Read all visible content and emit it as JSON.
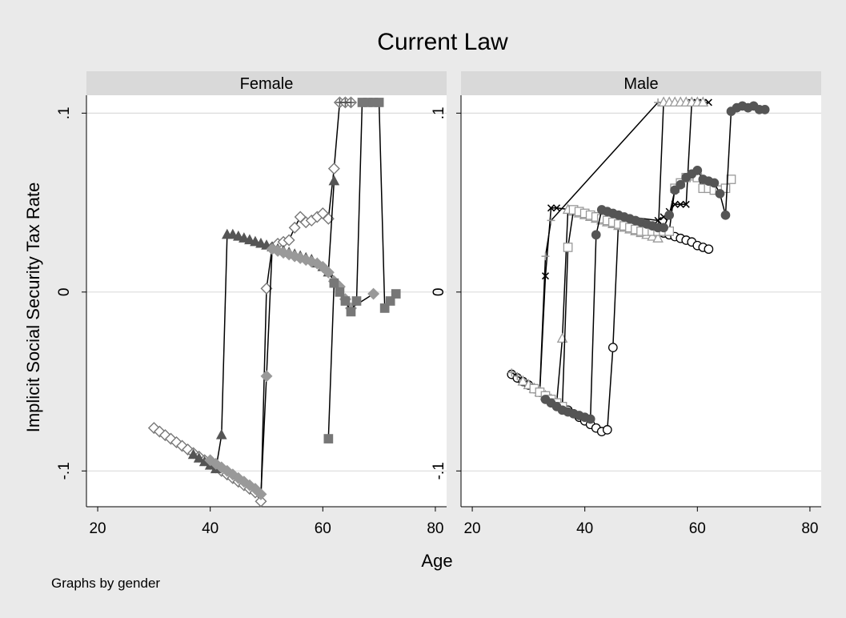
{
  "title": "Current Law",
  "xlabel": "Age",
  "ylabel": "Implicit Social Security Tax Rate",
  "note": "Graphs by gender",
  "colors": {
    "outer_bg": "#eaeaea",
    "panel_bg": "#ffffff",
    "strip_bg": "#d9d9d9",
    "grid": "#dcdcdc",
    "line": "#000000"
  },
  "chart_data": [
    {
      "type": "line",
      "panel": "Female",
      "xlim": [
        18,
        82
      ],
      "ylim": [
        -0.12,
        0.11
      ],
      "xticks": [
        20,
        40,
        60,
        80
      ],
      "xtick_labels": [
        "20",
        "40",
        "60",
        "80"
      ],
      "yticks": [
        -0.1,
        0,
        0.1
      ],
      "ytick_labels": [
        "-.1",
        "0",
        ".1"
      ],
      "grid": true,
      "series": [
        {
          "marker": "diamond-hollow",
          "color": "#777777",
          "x": [
            30,
            31,
            32,
            33,
            34,
            35,
            36,
            37,
            38,
            39,
            40,
            41,
            42,
            43,
            44,
            45,
            46,
            47,
            48,
            49,
            50,
            51,
            52,
            53,
            54,
            55,
            56,
            57,
            58,
            59,
            60,
            61,
            62,
            63,
            64,
            65
          ],
          "y": [
            -0.076,
            -0.078,
            -0.08,
            -0.082,
            -0.084,
            -0.086,
            -0.088,
            -0.09,
            -0.092,
            -0.094,
            -0.096,
            -0.098,
            -0.1,
            -0.102,
            -0.104,
            -0.106,
            -0.108,
            -0.11,
            -0.112,
            -0.117,
            0.002,
            0.025,
            0.027,
            0.028,
            0.029,
            0.036,
            0.042,
            0.039,
            0.04,
            0.042,
            0.044,
            0.041,
            0.069,
            0.106,
            0.106,
            0.106
          ]
        },
        {
          "marker": "triangle-filled",
          "color": "#555555",
          "x": [
            37,
            38,
            39,
            40,
            41,
            42,
            43,
            44,
            45,
            46,
            47,
            48,
            49,
            50,
            51,
            52,
            53,
            54,
            55,
            56,
            57,
            58,
            59,
            60,
            61,
            62
          ],
          "y": [
            -0.091,
            -0.093,
            -0.095,
            -0.097,
            -0.099,
            -0.08,
            0.032,
            0.032,
            0.031,
            0.03,
            0.029,
            0.028,
            0.027,
            0.026,
            0.025,
            0.024,
            0.023,
            0.022,
            0.021,
            0.02,
            0.019,
            0.018,
            0.016,
            0.014,
            0.011,
            0.062
          ]
        },
        {
          "marker": "diamond-filled",
          "color": "#999999",
          "x": [
            40,
            41,
            42,
            43,
            44,
            45,
            46,
            47,
            48,
            49,
            50,
            51,
            52,
            53,
            54,
            55,
            56,
            57,
            58,
            59,
            60,
            61,
            62,
            63,
            64,
            65,
            69
          ],
          "y": [
            -0.094,
            -0.096,
            -0.098,
            -0.1,
            -0.102,
            -0.104,
            -0.106,
            -0.108,
            -0.11,
            -0.113,
            -0.047,
            0.024,
            0.023,
            0.022,
            0.021,
            0.02,
            0.019,
            0.018,
            0.017,
            0.016,
            0.014,
            0.011,
            0.006,
            0.003,
            -0.004,
            -0.009,
            -0.001
          ]
        },
        {
          "marker": "square-filled",
          "color": "#777777",
          "x": [
            61,
            62,
            63,
            64,
            65,
            66,
            67,
            68,
            69,
            70,
            71,
            72,
            73
          ],
          "y": [
            -0.082,
            0.005,
            0.0,
            -0.005,
            -0.011,
            -0.005,
            0.106,
            0.106,
            0.106,
            0.106,
            -0.009,
            -0.005,
            -0.001
          ]
        },
        {
          "marker": "plus",
          "color": "#555555",
          "x": [
            63,
            64,
            65
          ],
          "y": [
            0.106,
            0.106,
            0.106
          ]
        }
      ]
    },
    {
      "type": "line",
      "panel": "Male",
      "xlim": [
        18,
        82
      ],
      "ylim": [
        -0.12,
        0.11
      ],
      "xticks": [
        20,
        40,
        60,
        80
      ],
      "xtick_labels": [
        "20",
        "40",
        "60",
        "80"
      ],
      "yticks": [
        -0.1,
        0,
        0.1
      ],
      "ytick_labels": [
        "-.1",
        "0",
        ".1"
      ],
      "grid": true,
      "series": [
        {
          "marker": "circle-hollow",
          "color": "#000000",
          "x": [
            27,
            28,
            29,
            30,
            31,
            32,
            33,
            34,
            35,
            36,
            37,
            38,
            39,
            40,
            41,
            42,
            43,
            44,
            45,
            46,
            47,
            48,
            49,
            50,
            51,
            52,
            53,
            54,
            55,
            56,
            57,
            58,
            59,
            60,
            61,
            62
          ],
          "y": [
            -0.046,
            -0.048,
            -0.05,
            -0.052,
            -0.054,
            -0.056,
            -0.058,
            -0.06,
            -0.062,
            -0.064,
            -0.066,
            -0.068,
            -0.07,
            -0.072,
            -0.074,
            -0.076,
            -0.078,
            -0.077,
            -0.031,
            0.041,
            0.04,
            0.039,
            0.038,
            0.037,
            0.036,
            0.035,
            0.034,
            0.033,
            0.032,
            0.031,
            0.03,
            0.029,
            0.028,
            0.026,
            0.025,
            0.024
          ]
        },
        {
          "marker": "x",
          "color": "#000000",
          "x": [
            32,
            33,
            34,
            35,
            53,
            54,
            55,
            56,
            57,
            58,
            59,
            60,
            61,
            62
          ],
          "y": [
            -0.056,
            0.009,
            0.047,
            0.047,
            0.04,
            0.042,
            0.045,
            0.049,
            0.049,
            0.049,
            0.106,
            0.106,
            0.106,
            0.106
          ]
        },
        {
          "marker": "plus",
          "color": "#999999",
          "x": [
            27,
            28,
            29,
            30,
            31,
            32,
            33,
            34,
            53,
            54,
            55
          ],
          "y": [
            -0.045,
            -0.047,
            -0.049,
            -0.051,
            -0.053,
            -0.055,
            0.02,
            0.04,
            0.106,
            0.106,
            0.106
          ]
        },
        {
          "marker": "triangle-hollow",
          "color": "#999999",
          "x": [
            29,
            30,
            31,
            32,
            33,
            34,
            35,
            36,
            37,
            38,
            39,
            40,
            41,
            42,
            43,
            44,
            45,
            46,
            47,
            48,
            49,
            50,
            51,
            52,
            53,
            54,
            55,
            56,
            57,
            58,
            59,
            60,
            61
          ],
          "y": [
            -0.05,
            -0.052,
            -0.054,
            -0.056,
            -0.058,
            -0.06,
            -0.062,
            -0.026,
            0.046,
            0.045,
            0.044,
            0.043,
            0.042,
            0.041,
            0.04,
            0.039,
            0.038,
            0.037,
            0.036,
            0.035,
            0.034,
            0.033,
            0.032,
            0.031,
            0.03,
            0.106,
            0.106,
            0.106,
            0.106,
            0.106,
            0.106,
            0.106,
            0.106
          ]
        },
        {
          "marker": "square-hollow",
          "color": "#999999",
          "x": [
            31,
            32,
            33,
            34,
            35,
            36,
            37,
            38,
            39,
            40,
            41,
            42,
            43,
            44,
            45,
            46,
            47,
            48,
            49,
            50,
            51,
            52,
            53,
            54,
            55,
            56,
            57,
            58,
            59,
            60,
            61,
            62,
            63,
            64,
            65,
            66
          ],
          "y": [
            -0.054,
            -0.056,
            -0.058,
            -0.06,
            -0.062,
            -0.064,
            0.025,
            0.046,
            0.045,
            0.044,
            0.043,
            0.042,
            0.041,
            0.04,
            0.039,
            0.038,
            0.037,
            0.036,
            0.035,
            0.034,
            0.034,
            0.034,
            0.034,
            0.034,
            0.034,
            0.058,
            0.061,
            0.064,
            0.065,
            0.064,
            0.058,
            0.058,
            0.057,
            0.057,
            0.058,
            0.063
          ]
        },
        {
          "marker": "circle-filled",
          "color": "#555555",
          "x": [
            33,
            34,
            35,
            36,
            37,
            38,
            39,
            40,
            41,
            42,
            43,
            44,
            45,
            46,
            47,
            48,
            49,
            50,
            51,
            52,
            53,
            54,
            55,
            56,
            57,
            58,
            59,
            60,
            61,
            62,
            63,
            64,
            65,
            66,
            67,
            68,
            69,
            70,
            71,
            72
          ],
          "y": [
            -0.06,
            -0.062,
            -0.064,
            -0.066,
            -0.067,
            -0.068,
            -0.069,
            -0.07,
            -0.071,
            0.032,
            0.046,
            0.045,
            0.044,
            0.043,
            0.042,
            0.041,
            0.04,
            0.039,
            0.038,
            0.037,
            0.036,
            0.036,
            0.043,
            0.057,
            0.06,
            0.064,
            0.066,
            0.068,
            0.063,
            0.062,
            0.061,
            0.055,
            0.043,
            0.101,
            0.103,
            0.104,
            0.103,
            0.104,
            0.102,
            0.102
          ]
        }
      ]
    }
  ]
}
